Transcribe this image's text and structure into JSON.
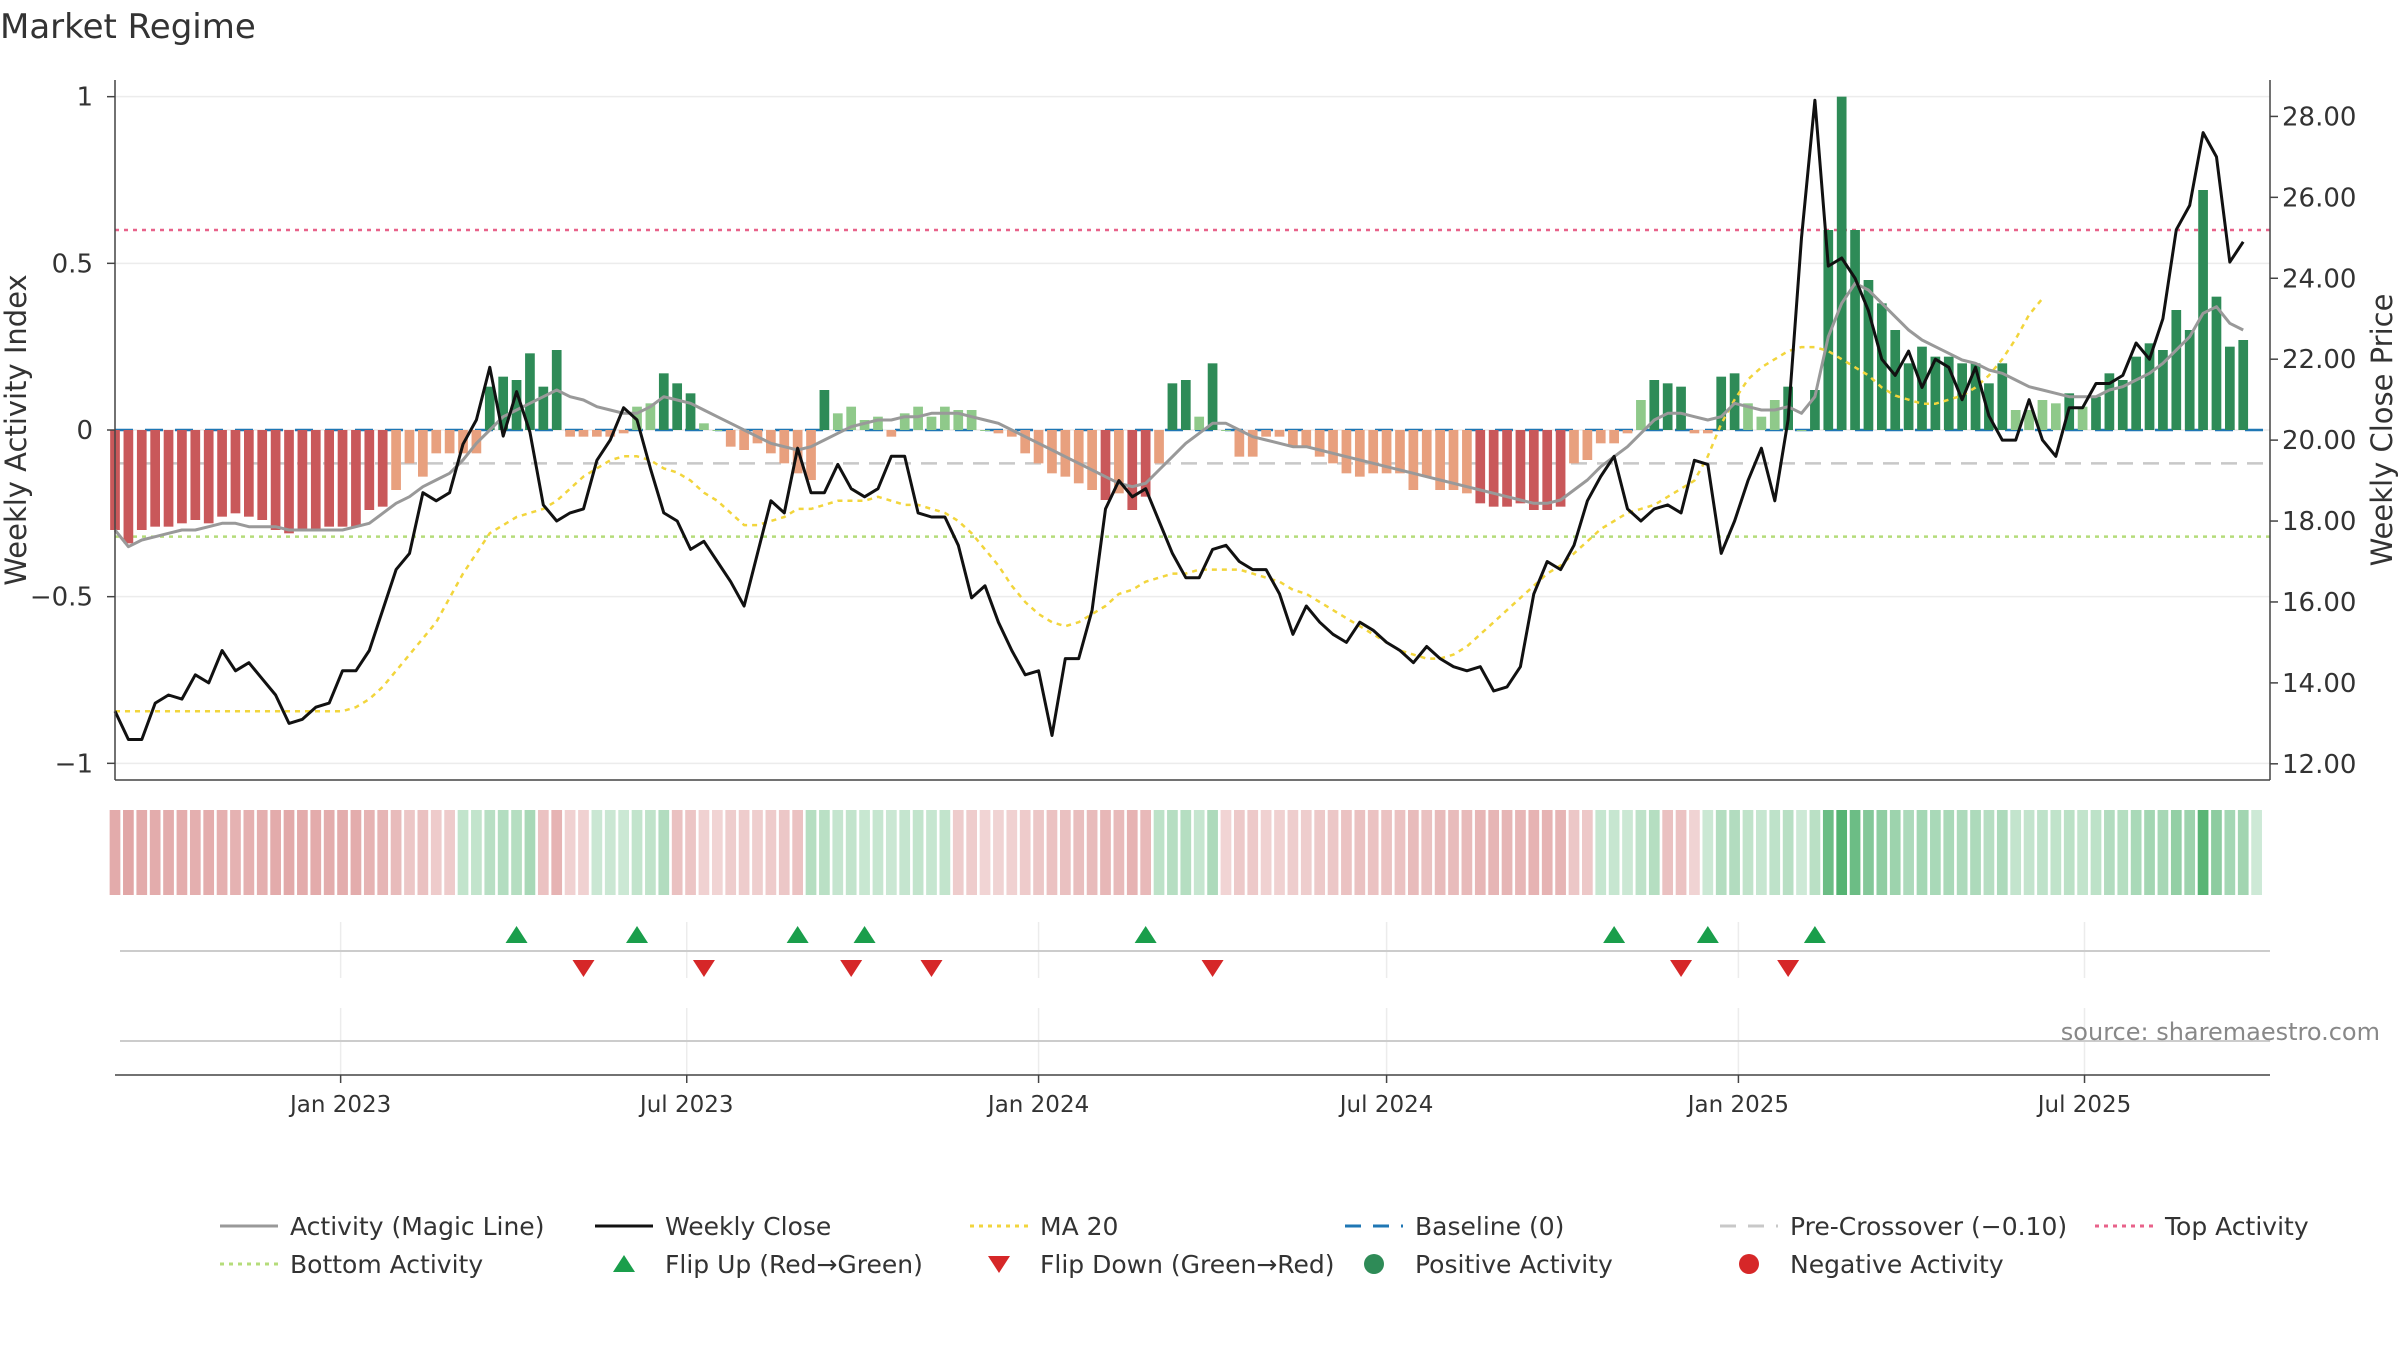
{
  "colors": {
    "activity_line": "#999999",
    "weekly_close": "#111111",
    "ma20": "#f2d53c",
    "baseline": "#1f77b4",
    "pre_crossover": "#c8c8c8",
    "top_activity": "#e8628a",
    "bottom_activity": "#b5dc7a",
    "flip_up": "#1a9e4b",
    "flip_down": "#d62728",
    "pos_strong": "#2e8b57",
    "pos_weak": "#8fc98a",
    "neg_strong": "#c9585a",
    "neg_weak": "#e8a07e",
    "heat_pos": "#4caf6a",
    "heat_neg": "#cc6666"
  },
  "chart_data": {
    "type": "bar",
    "title": "Market Regime",
    "source": "source: sharemaestro.com",
    "left_axis": {
      "label": "Weekly Activity Index",
      "range": [
        -1.05,
        1.05
      ],
      "ticks": [
        1,
        0.5,
        0,
        -0.5,
        -1
      ],
      "tick_labels": [
        "1",
        "0.5",
        "0",
        "−0.5",
        "−1"
      ]
    },
    "right_axis": {
      "label": "Weekly Close Price",
      "range": [
        11.6,
        28.9
      ],
      "ticks": [
        28,
        26,
        24,
        22,
        20,
        18,
        16,
        14,
        12
      ],
      "tick_labels": [
        "28.00",
        "26.00",
        "24.00",
        "22.00",
        "20.00",
        "18.00",
        "16.00",
        "14.00",
        "12.00"
      ]
    },
    "x_axis": {
      "start": "2022-09-05",
      "end": "2025-10-06",
      "ticks": [
        "2023-01-01",
        "2023-07-01",
        "2024-01-01",
        "2024-07-01",
        "2025-01-01",
        "2025-07-01"
      ],
      "tick_labels": [
        "Jan 2023",
        "Jul 2023",
        "Jan 2024",
        "Jul 2024",
        "Jan 2025",
        "Jul 2025"
      ]
    },
    "levels": {
      "top_activity": 0.6,
      "bottom_activity": -0.32,
      "baseline": 0,
      "pre_crossover": -0.1
    },
    "activity_bars": {
      "start_week": "2022-09-05",
      "values": [
        -0.3,
        -0.34,
        -0.3,
        -0.29,
        -0.29,
        -0.28,
        -0.27,
        -0.28,
        -0.26,
        -0.25,
        -0.26,
        -0.27,
        -0.3,
        -0.31,
        -0.3,
        -0.3,
        -0.29,
        -0.29,
        -0.29,
        -0.24,
        -0.23,
        -0.18,
        -0.1,
        -0.14,
        -0.07,
        -0.07,
        -0.07,
        -0.07,
        0.13,
        0.16,
        0.15,
        0.23,
        0.13,
        0.24,
        -0.02,
        -0.02,
        -0.02,
        -0.02,
        -0.01,
        0.07,
        0.08,
        0.17,
        0.14,
        0.11,
        0.02,
        0,
        -0.05,
        -0.06,
        -0.04,
        -0.07,
        -0.1,
        -0.13,
        -0.15,
        0.12,
        0.05,
        0.07,
        0.03,
        0.04,
        -0.02,
        0.05,
        0.07,
        0.04,
        0.07,
        0.06,
        0.06,
        0,
        -0.01,
        -0.02,
        -0.07,
        -0.1,
        -0.13,
        -0.14,
        -0.16,
        -0.18,
        -0.21,
        -0.19,
        -0.24,
        -0.2,
        -0.1,
        0.14,
        0.15,
        0.04,
        0.2,
        0,
        -0.08,
        -0.08,
        -0.02,
        -0.02,
        -0.05,
        -0.05,
        -0.08,
        -0.1,
        -0.13,
        -0.14,
        -0.13,
        -0.13,
        -0.13,
        -0.18,
        -0.14,
        -0.18,
        -0.18,
        -0.19,
        -0.22,
        -0.23,
        -0.23,
        -0.22,
        -0.24,
        -0.24,
        -0.23,
        -0.1,
        -0.09,
        -0.04,
        -0.04,
        -0.01,
        0.09,
        0.15,
        0.14,
        0.13,
        -0.01,
        -0.01,
        0.16,
        0.17,
        0.08,
        0.04,
        0.09,
        0.13,
        0,
        0.12,
        0.6,
        1.0,
        0.6,
        0.45,
        0.38,
        0.3,
        0.2,
        0.25,
        0.22,
        0.22,
        0.2,
        0.2,
        0.14,
        0.2,
        0.06,
        0.06,
        0.09,
        0.08,
        0.11,
        0.07,
        0.1,
        0.17,
        0.15,
        0.22,
        0.26,
        0.24,
        0.36,
        0.3,
        0.72,
        0.4,
        0.25,
        0.27
      ]
    },
    "activity_line": {
      "start_week": "2022-09-05",
      "values": [
        -0.3,
        -0.35,
        -0.33,
        -0.32,
        -0.31,
        -0.3,
        -0.3,
        -0.29,
        -0.28,
        -0.28,
        -0.29,
        -0.29,
        -0.29,
        -0.3,
        -0.3,
        -0.3,
        -0.3,
        -0.3,
        -0.29,
        -0.28,
        -0.25,
        -0.22,
        -0.2,
        -0.17,
        -0.15,
        -0.13,
        -0.09,
        -0.04,
        0,
        0.04,
        0.06,
        0.08,
        0.1,
        0.12,
        0.1,
        0.09,
        0.07,
        0.06,
        0.05,
        0.05,
        0.07,
        0.1,
        0.09,
        0.08,
        0.06,
        0.04,
        0.02,
        0,
        -0.02,
        -0.04,
        -0.05,
        -0.06,
        -0.05,
        -0.03,
        -0.01,
        0.01,
        0.02,
        0.03,
        0.03,
        0.04,
        0.04,
        0.05,
        0.05,
        0.05,
        0.04,
        0.03,
        0.02,
        0,
        -0.02,
        -0.04,
        -0.06,
        -0.08,
        -0.1,
        -0.12,
        -0.14,
        -0.16,
        -0.17,
        -0.16,
        -0.12,
        -0.08,
        -0.04,
        -0.01,
        0.02,
        0.02,
        0,
        -0.02,
        -0.03,
        -0.04,
        -0.05,
        -0.05,
        -0.06,
        -0.07,
        -0.08,
        -0.09,
        -0.1,
        -0.11,
        -0.12,
        -0.13,
        -0.14,
        -0.15,
        -0.16,
        -0.17,
        -0.18,
        -0.19,
        -0.2,
        -0.21,
        -0.22,
        -0.22,
        -0.21,
        -0.18,
        -0.15,
        -0.11,
        -0.08,
        -0.05,
        -0.01,
        0.03,
        0.05,
        0.05,
        0.04,
        0.03,
        0.04,
        0.08,
        0.07,
        0.06,
        0.06,
        0.07,
        0.05,
        0.1,
        0.28,
        0.38,
        0.44,
        0.42,
        0.38,
        0.34,
        0.3,
        0.27,
        0.25,
        0.23,
        0.21,
        0.2,
        0.18,
        0.17,
        0.15,
        0.13,
        0.12,
        0.11,
        0.1,
        0.1,
        0.1,
        0.12,
        0.13,
        0.15,
        0.17,
        0.2,
        0.24,
        0.28,
        0.35,
        0.37,
        0.32,
        0.3
      ]
    },
    "weekly_close": {
      "start_week": "2022-09-05",
      "values": [
        13.3,
        12.6,
        12.6,
        13.5,
        13.7,
        13.6,
        14.2,
        14.0,
        14.8,
        14.3,
        14.5,
        14.1,
        13.7,
        13.0,
        13.1,
        13.4,
        13.5,
        14.3,
        14.3,
        14.8,
        15.8,
        16.8,
        17.2,
        18.7,
        18.5,
        18.7,
        19.9,
        20.5,
        21.8,
        20.1,
        21.2,
        20.2,
        18.4,
        18.0,
        18.2,
        18.3,
        19.5,
        20.0,
        20.8,
        20.5,
        19.3,
        18.2,
        18.0,
        17.3,
        17.5,
        17.0,
        16.5,
        15.9,
        17.2,
        18.5,
        18.2,
        19.8,
        18.7,
        18.7,
        19.4,
        18.8,
        18.6,
        18.8,
        19.6,
        19.6,
        18.2,
        18.1,
        18.1,
        17.4,
        16.1,
        16.4,
        15.5,
        14.8,
        14.2,
        14.3,
        12.7,
        14.6,
        14.6,
        15.8,
        18.3,
        19.0,
        18.6,
        18.8,
        18.0,
        17.2,
        16.6,
        16.6,
        17.3,
        17.4,
        17.0,
        16.8,
        16.8,
        16.2,
        15.2,
        15.9,
        15.5,
        15.2,
        15.0,
        15.5,
        15.3,
        15.0,
        14.8,
        14.5,
        14.9,
        14.6,
        14.4,
        14.3,
        14.4,
        13.8,
        13.9,
        14.4,
        16.2,
        17.0,
        16.8,
        17.4,
        18.5,
        19.1,
        19.6,
        18.3,
        18.0,
        18.3,
        18.4,
        18.2,
        19.5,
        19.4,
        17.2,
        18.0,
        19.0,
        19.8,
        18.5,
        20.5,
        25.0,
        28.4,
        24.3,
        24.5,
        24.0,
        23.2,
        22.0,
        21.6,
        22.2,
        21.3,
        22.0,
        21.8,
        21.0,
        21.8,
        20.6,
        20.0,
        20.0,
        21.0,
        20.0,
        19.6,
        20.8,
        20.8,
        21.4,
        21.4,
        21.6,
        22.4,
        22.0,
        23.0,
        25.2,
        25.8,
        27.6,
        27.0,
        24.4,
        24.9
      ]
    },
    "ma20": {
      "start_week": "2022-09-05",
      "values": [
        13.3,
        13.3,
        13.3,
        13.3,
        13.3,
        13.3,
        13.3,
        13.3,
        13.3,
        13.3,
        13.3,
        13.3,
        13.3,
        13.3,
        13.3,
        13.3,
        13.3,
        13.3,
        13.4,
        13.6,
        13.9,
        14.3,
        14.7,
        15.1,
        15.5,
        16.1,
        16.7,
        17.2,
        17.7,
        17.9,
        18.1,
        18.2,
        18.3,
        18.5,
        18.8,
        19.1,
        19.3,
        19.5,
        19.6,
        19.6,
        19.5,
        19.3,
        19.2,
        19.0,
        18.7,
        18.5,
        18.2,
        17.9,
        17.9,
        18.0,
        18.1,
        18.3,
        18.3,
        18.4,
        18.5,
        18.5,
        18.5,
        18.6,
        18.5,
        18.4,
        18.4,
        18.3,
        18.2,
        18.0,
        17.7,
        17.3,
        16.9,
        16.4,
        16.0,
        15.7,
        15.5,
        15.4,
        15.5,
        15.7,
        15.9,
        16.2,
        16.3,
        16.5,
        16.6,
        16.7,
        16.7,
        16.8,
        16.8,
        16.8,
        16.8,
        16.7,
        16.6,
        16.5,
        16.3,
        16.2,
        16.0,
        15.8,
        15.6,
        15.4,
        15.2,
        15.0,
        14.8,
        14.7,
        14.6,
        14.6,
        14.7,
        14.9,
        15.2,
        15.5,
        15.8,
        16.1,
        16.4,
        16.7,
        16.9,
        17.2,
        17.5,
        17.8,
        18.0,
        18.2,
        18.3,
        18.4,
        18.6,
        18.8,
        19.0,
        19.6,
        20.4,
        21.0,
        21.5,
        21.8,
        22.0,
        22.2,
        22.3,
        22.3,
        22.2,
        22.0,
        21.8,
        21.6,
        21.3,
        21.1,
        21.0,
        20.9,
        20.9,
        21.0,
        21.1,
        21.3,
        21.6,
        22.0,
        22.5,
        23.1,
        23.5
      ]
    },
    "heat_strip": {
      "start_week": "2022-09-05",
      "regime": [
        "neg",
        "neg",
        "neg",
        "neg",
        "neg",
        "neg",
        "neg",
        "neg",
        "neg",
        "neg",
        "neg",
        "neg",
        "neg",
        "neg",
        "neg",
        "neg",
        "neg",
        "neg",
        "neg",
        "neg",
        "neg",
        "neg",
        "neg",
        "neg",
        "neg",
        "neg",
        "pos",
        "pos",
        "pos",
        "pos",
        "pos",
        "pos",
        "neg",
        "neg",
        "neg",
        "neg",
        "pos",
        "pos",
        "pos",
        "pos",
        "pos",
        "pos",
        "neg",
        "neg",
        "neg",
        "neg",
        "neg",
        "neg",
        "neg",
        "neg",
        "neg",
        "neg",
        "pos",
        "pos",
        "pos",
        "pos",
        "pos",
        "pos",
        "pos",
        "pos",
        "pos",
        "pos",
        "pos",
        "neg",
        "neg",
        "neg",
        "neg",
        "neg",
        "neg",
        "neg",
        "neg",
        "neg",
        "neg",
        "neg",
        "neg",
        "neg",
        "neg",
        "neg",
        "pos",
        "pos",
        "pos",
        "pos",
        "pos",
        "neg",
        "neg",
        "neg",
        "neg",
        "neg",
        "neg",
        "neg",
        "neg",
        "neg",
        "neg",
        "neg",
        "neg",
        "neg",
        "neg",
        "neg",
        "neg",
        "neg",
        "neg",
        "neg",
        "neg",
        "neg",
        "neg",
        "neg",
        "neg",
        "neg",
        "neg",
        "neg",
        "neg",
        "pos",
        "pos",
        "pos",
        "pos",
        "pos",
        "neg",
        "neg",
        "neg",
        "pos",
        "pos",
        "pos",
        "pos",
        "pos",
        "pos",
        "pos",
        "pos",
        "pos",
        "pos",
        "pos",
        "pos",
        "pos",
        "pos",
        "pos",
        "pos",
        "pos",
        "pos",
        "pos",
        "pos",
        "pos",
        "pos",
        "pos",
        "pos",
        "pos",
        "pos",
        "pos",
        "pos",
        "pos",
        "pos",
        "pos",
        "pos",
        "pos",
        "pos",
        "pos",
        "pos",
        "pos",
        "pos",
        "pos",
        "pos",
        "pos",
        "pos"
      ]
    },
    "flips": {
      "up": [
        "2023-04-03",
        "2023-06-05",
        "2023-08-28",
        "2023-10-02",
        "2024-02-26",
        "2024-10-28",
        "2024-12-16",
        "2025-02-10"
      ],
      "down": [
        "2023-05-08",
        "2023-07-10",
        "2023-09-25",
        "2023-11-06",
        "2024-04-01",
        "2024-12-02",
        "2025-01-27"
      ]
    },
    "legend": {
      "position": "bottom",
      "entries": [
        {
          "label": "Activity (Magic Line)",
          "kind": "line-solid",
          "color_key": "activity_line"
        },
        {
          "label": "Weekly Close",
          "kind": "line-solid",
          "color_key": "weekly_close"
        },
        {
          "label": "MA 20",
          "kind": "line-dotted",
          "color_key": "ma20"
        },
        {
          "label": "Baseline (0)",
          "kind": "line-dashed",
          "color_key": "baseline"
        },
        {
          "label": "Pre-Crossover (−0.10)",
          "kind": "line-dashed",
          "color_key": "pre_crossover"
        },
        {
          "label": "Top Activity",
          "kind": "line-dotted",
          "color_key": "top_activity"
        },
        {
          "label": "Bottom Activity",
          "kind": "line-dotted",
          "color_key": "bottom_activity"
        },
        {
          "label": "Flip Up (Red→Green)",
          "kind": "triangle-up",
          "color_key": "flip_up"
        },
        {
          "label": "Flip Down (Green→Red)",
          "kind": "triangle-down",
          "color_key": "flip_down"
        },
        {
          "label": "Positive Activity",
          "kind": "circle",
          "color_key": "pos_strong"
        },
        {
          "label": "Negative Activity",
          "kind": "circle",
          "color_key": "flip_down"
        }
      ]
    }
  }
}
